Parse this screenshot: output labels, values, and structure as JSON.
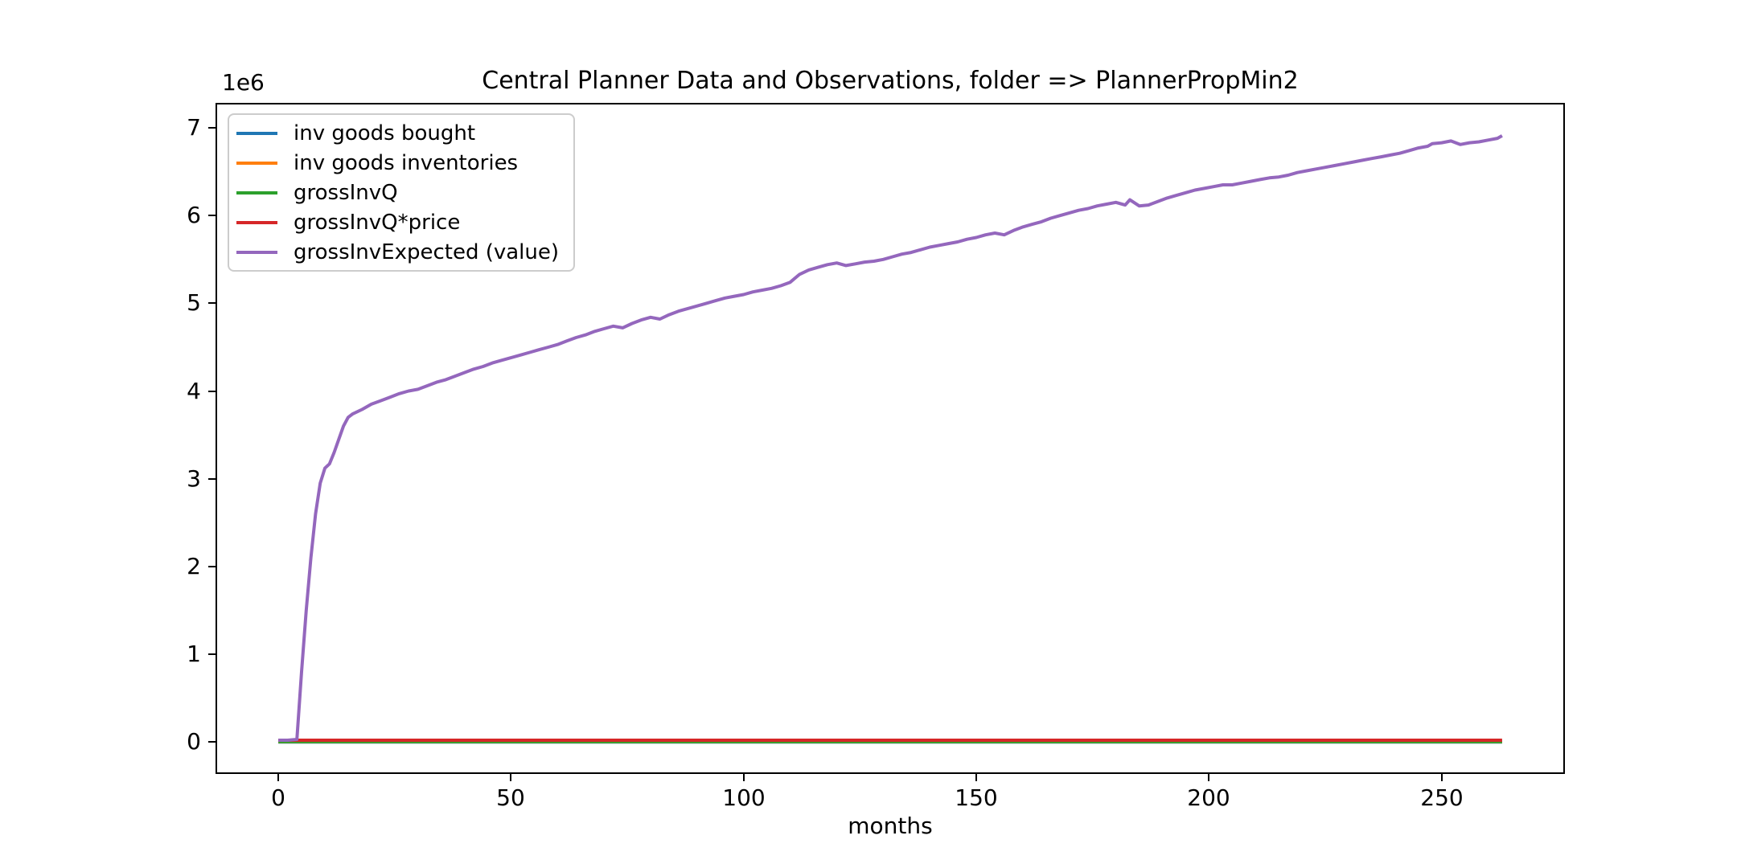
{
  "figure": {
    "title": "Central Planner Data and Observations, folder => PlannerPropMin2",
    "xlabel": "months",
    "y_offset_label": "1e6"
  },
  "chart_data": {
    "type": "line",
    "title": "Central Planner Data and Observations, folder => PlannerPropMin2",
    "xlabel": "months",
    "ylabel": "",
    "y_multiplier_label": "1e6",
    "grid": false,
    "legend_position": "upper left",
    "xlim": [
      -13.15,
      276.15
    ],
    "ylim_e6": [
      -0.346,
      7.266
    ],
    "xtick_values": [
      0,
      50,
      100,
      150,
      200,
      250
    ],
    "xtick_labels": [
      "0",
      "50",
      "100",
      "150",
      "200",
      "250"
    ],
    "ytick_values_e6": [
      0,
      1,
      2,
      3,
      4,
      5,
      6,
      7
    ],
    "ytick_labels": [
      "0",
      "1",
      "2",
      "3",
      "4",
      "5",
      "6",
      "7"
    ],
    "series": [
      {
        "name": "inv goods bought",
        "color": "#1f77b4",
        "x": [
          0,
          263
        ],
        "values_e6": [
          0.0,
          0.0
        ]
      },
      {
        "name": "inv goods inventories",
        "color": "#ff7f0e",
        "x": [
          0,
          263
        ],
        "values_e6": [
          0.003,
          0.003
        ]
      },
      {
        "name": "grossInvQ",
        "color": "#2ca02c",
        "x": [
          0,
          263
        ],
        "values_e6": [
          0.005,
          0.005
        ]
      },
      {
        "name": "grossInvQ*price",
        "color": "#d62728",
        "x": [
          0,
          263
        ],
        "values_e6": [
          0.02,
          0.02
        ]
      },
      {
        "name": "grossInvExpected (value)",
        "color": "#9467bd",
        "x": [
          0,
          2,
          4,
          5,
          6,
          7,
          8,
          9,
          10,
          11,
          12,
          13,
          14,
          15,
          16,
          18,
          20,
          22,
          24,
          26,
          28,
          30,
          32,
          34,
          36,
          38,
          40,
          42,
          44,
          46,
          48,
          50,
          52,
          54,
          56,
          58,
          60,
          62,
          64,
          66,
          68,
          70,
          72,
          74,
          76,
          78,
          80,
          82,
          84,
          86,
          88,
          90,
          92,
          94,
          96,
          98,
          100,
          102,
          104,
          106,
          108,
          110,
          112,
          114,
          116,
          118,
          120,
          122,
          124,
          126,
          128,
          130,
          132,
          134,
          136,
          138,
          140,
          142,
          144,
          146,
          148,
          150,
          152,
          154,
          156,
          158,
          160,
          162,
          164,
          166,
          168,
          170,
          172,
          174,
          176,
          178,
          180,
          182,
          183,
          185,
          187,
          189,
          191,
          193,
          195,
          197,
          199,
          201,
          203,
          205,
          207,
          209,
          211,
          213,
          215,
          217,
          219,
          221,
          223,
          225,
          227,
          229,
          231,
          233,
          235,
          237,
          239,
          241,
          243,
          245,
          247,
          248,
          250,
          252,
          254,
          256,
          258,
          260,
          262,
          263
        ],
        "values_e6": [
          0.02,
          0.02,
          0.03,
          0.8,
          1.5,
          2.1,
          2.6,
          2.95,
          3.12,
          3.17,
          3.3,
          3.45,
          3.6,
          3.7,
          3.74,
          3.79,
          3.85,
          3.89,
          3.93,
          3.97,
          4.0,
          4.02,
          4.06,
          4.1,
          4.13,
          4.17,
          4.21,
          4.25,
          4.28,
          4.32,
          4.35,
          4.38,
          4.41,
          4.44,
          4.47,
          4.5,
          4.53,
          4.57,
          4.61,
          4.64,
          4.68,
          4.71,
          4.74,
          4.72,
          4.77,
          4.81,
          4.84,
          4.82,
          4.87,
          4.91,
          4.94,
          4.97,
          5.0,
          5.03,
          5.06,
          5.08,
          5.1,
          5.13,
          5.15,
          5.17,
          5.2,
          5.24,
          5.33,
          5.38,
          5.41,
          5.44,
          5.46,
          5.43,
          5.45,
          5.47,
          5.48,
          5.5,
          5.53,
          5.56,
          5.58,
          5.61,
          5.64,
          5.66,
          5.68,
          5.7,
          5.73,
          5.75,
          5.78,
          5.8,
          5.78,
          5.83,
          5.87,
          5.9,
          5.93,
          5.97,
          6.0,
          6.03,
          6.06,
          6.08,
          6.11,
          6.13,
          6.15,
          6.12,
          6.18,
          6.11,
          6.12,
          6.16,
          6.2,
          6.23,
          6.26,
          6.29,
          6.31,
          6.33,
          6.35,
          6.35,
          6.37,
          6.39,
          6.41,
          6.43,
          6.44,
          6.46,
          6.49,
          6.51,
          6.53,
          6.55,
          6.57,
          6.59,
          6.61,
          6.63,
          6.65,
          6.67,
          6.69,
          6.71,
          6.74,
          6.77,
          6.79,
          6.82,
          6.83,
          6.85,
          6.81,
          6.83,
          6.84,
          6.86,
          6.88,
          6.91
        ]
      }
    ]
  }
}
